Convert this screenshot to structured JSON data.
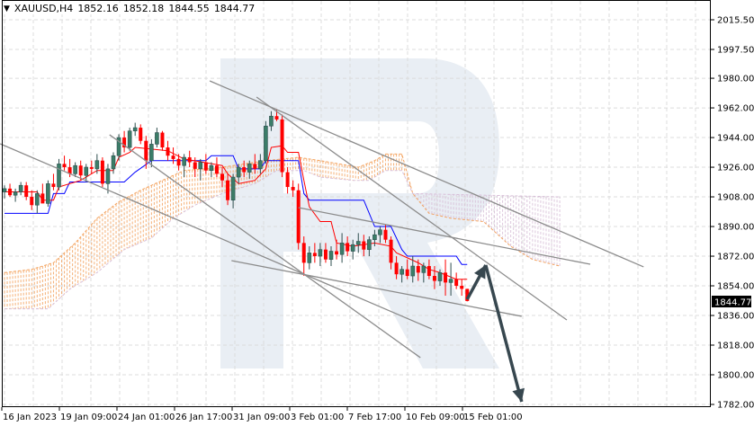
{
  "header": {
    "symbol": "XAUUSD,H4",
    "open": "1852.16",
    "high": "1852.18",
    "low": "1844.55",
    "close": "1844.77",
    "menu_icon": "triangle-down-icon"
  },
  "colors": {
    "bull": "#3b7d68",
    "bear": "#ff0000",
    "tenkan": "#ff0000",
    "kijun": "#0000ff",
    "span_a": "#f4a460",
    "span_b": "#d8bfd8",
    "trendline": "#8c8c8c",
    "arrow": "#37474f",
    "watermark": "#e9eef4"
  },
  "chart_data": {
    "type": "candlestick",
    "ylim": [
      1782,
      2015.5
    ],
    "grid": true,
    "y_ticks": [
      "2015.50",
      "1997.50",
      "1980.00",
      "1962.00",
      "1944.00",
      "1926.00",
      "1908.00",
      "1890.00",
      "1872.00",
      "1854.00",
      "1836.00",
      "1818.00",
      "1800.00",
      "1782.00"
    ],
    "x_ticks": [
      "16 Jan 2023",
      "19 Jan 09:00",
      "24 Jan 01:00",
      "26 Jan 17:00",
      "31 Jan 09:00",
      "3 Feb 01:00",
      "7 Feb 17:00",
      "10 Feb 09:00",
      "15 Feb 01:00"
    ],
    "current_price": "1844.77",
    "candles_ohlc": [
      [
        1911,
        1915,
        1907,
        1913
      ],
      [
        1913,
        1916,
        1908,
        1909
      ],
      [
        1909,
        1913,
        1905,
        1911
      ],
      [
        1911,
        1917,
        1909,
        1915
      ],
      [
        1915,
        1917,
        1906,
        1908
      ],
      [
        1908,
        1912,
        1900,
        1903
      ],
      [
        1903,
        1912,
        1898,
        1910
      ],
      [
        1910,
        1916,
        1906,
        1904
      ],
      [
        1904,
        1918,
        1902,
        1916
      ],
      [
        1916,
        1922,
        1912,
        1914
      ],
      [
        1914,
        1931,
        1912,
        1928
      ],
      [
        1928,
        1933,
        1924,
        1926
      ],
      [
        1926,
        1931,
        1920,
        1922
      ],
      [
        1922,
        1929,
        1920,
        1927
      ],
      [
        1927,
        1930,
        1918,
        1921
      ],
      [
        1921,
        1928,
        1917,
        1926
      ],
      [
        1926,
        1930,
        1922,
        1925
      ],
      [
        1925,
        1934,
        1922,
        1930
      ],
      [
        1930,
        1932,
        1914,
        1916
      ],
      [
        1916,
        1928,
        1910,
        1925
      ],
      [
        1925,
        1935,
        1922,
        1933
      ],
      [
        1933,
        1946,
        1930,
        1944
      ],
      [
        1944,
        1948,
        1935,
        1938
      ],
      [
        1938,
        1950,
        1936,
        1948
      ],
      [
        1948,
        1953,
        1945,
        1950
      ],
      [
        1950,
        1952,
        1940,
        1942
      ],
      [
        1942,
        1945,
        1925,
        1930
      ],
      [
        1930,
        1943,
        1926,
        1940
      ],
      [
        1940,
        1950,
        1938,
        1947
      ],
      [
        1947,
        1948,
        1936,
        1938
      ],
      [
        1938,
        1942,
        1930,
        1933
      ],
      [
        1933,
        1938,
        1928,
        1931
      ],
      [
        1931,
        1934,
        1924,
        1927
      ],
      [
        1927,
        1934,
        1920,
        1932
      ],
      [
        1932,
        1936,
        1926,
        1929
      ],
      [
        1929,
        1932,
        1920,
        1925
      ],
      [
        1925,
        1931,
        1918,
        1929
      ],
      [
        1929,
        1934,
        1922,
        1924
      ],
      [
        1924,
        1929,
        1920,
        1927
      ],
      [
        1927,
        1932,
        1920,
        1922
      ],
      [
        1922,
        1926,
        1914,
        1918
      ],
      [
        1918,
        1922,
        1903,
        1906
      ],
      [
        1906,
        1922,
        1901,
        1920
      ],
      [
        1920,
        1928,
        1916,
        1926
      ],
      [
        1926,
        1930,
        1920,
        1923
      ],
      [
        1923,
        1930,
        1919,
        1928
      ],
      [
        1928,
        1934,
        1922,
        1925
      ],
      [
        1925,
        1934,
        1922,
        1930
      ],
      [
        1930,
        1954,
        1928,
        1951
      ],
      [
        1951,
        1960,
        1948,
        1957
      ],
      [
        1957,
        1961,
        1954,
        1955
      ],
      [
        1955,
        1958,
        1920,
        1923
      ],
      [
        1923,
        1926,
        1910,
        1914
      ],
      [
        1914,
        1918,
        1908,
        1912
      ],
      [
        1912,
        1916,
        1876,
        1880
      ],
      [
        1880,
        1884,
        1860,
        1868
      ],
      [
        1868,
        1878,
        1864,
        1874
      ],
      [
        1874,
        1880,
        1868,
        1872
      ],
      [
        1872,
        1880,
        1866,
        1876
      ],
      [
        1876,
        1880,
        1868,
        1870
      ],
      [
        1870,
        1878,
        1866,
        1875
      ],
      [
        1875,
        1882,
        1870,
        1873
      ],
      [
        1873,
        1886,
        1868,
        1880
      ],
      [
        1880,
        1884,
        1872,
        1875
      ],
      [
        1875,
        1882,
        1870,
        1879
      ],
      [
        1879,
        1886,
        1874,
        1881
      ],
      [
        1881,
        1885,
        1872,
        1876
      ],
      [
        1876,
        1884,
        1872,
        1882
      ],
      [
        1882,
        1888,
        1878,
        1885
      ],
      [
        1885,
        1890,
        1880,
        1888
      ],
      [
        1888,
        1891,
        1880,
        1882
      ],
      [
        1882,
        1884,
        1864,
        1868
      ],
      [
        1868,
        1872,
        1858,
        1861
      ],
      [
        1861,
        1866,
        1856,
        1864
      ],
      [
        1864,
        1870,
        1858,
        1860
      ],
      [
        1860,
        1872,
        1856,
        1866
      ],
      [
        1866,
        1870,
        1857,
        1862
      ],
      [
        1862,
        1868,
        1856,
        1866
      ],
      [
        1866,
        1870,
        1858,
        1860
      ],
      [
        1860,
        1866,
        1852,
        1857
      ],
      [
        1857,
        1864,
        1854,
        1862
      ],
      [
        1862,
        1870,
        1848,
        1856
      ],
      [
        1856,
        1868,
        1848,
        1858
      ],
      [
        1858,
        1862,
        1852,
        1854
      ],
      [
        1854,
        1858,
        1848,
        1852.16
      ],
      [
        1852.16,
        1852.18,
        1844.55,
        1844.77
      ]
    ],
    "ichimoku": {
      "tenkan": [
        [
          0,
          1911
        ],
        [
          6,
          1911
        ],
        [
          7,
          1906
        ],
        [
          9,
          1906
        ],
        [
          10,
          1914
        ],
        [
          14,
          1918
        ],
        [
          17,
          1924
        ],
        [
          20,
          1924
        ],
        [
          21,
          1932
        ],
        [
          23,
          1935
        ],
        [
          24,
          1938
        ],
        [
          30,
          1936
        ],
        [
          33,
          1931
        ],
        [
          40,
          1927
        ],
        [
          41,
          1922
        ],
        [
          43,
          1916
        ],
        [
          46,
          1918
        ],
        [
          48,
          1925
        ],
        [
          49,
          1938
        ],
        [
          51,
          1939
        ],
        [
          52,
          1935
        ],
        [
          54,
          1935
        ],
        [
          55,
          1918
        ],
        [
          56,
          1902
        ],
        [
          58,
          1893
        ],
        [
          60,
          1893
        ],
        [
          61,
          1880
        ],
        [
          64,
          1878
        ],
        [
          68,
          1880
        ],
        [
          71,
          1878
        ],
        [
          72,
          1874
        ],
        [
          76,
          1868
        ],
        [
          78,
          1864
        ],
        [
          80,
          1862
        ],
        [
          83,
          1858
        ],
        [
          85,
          1858
        ]
      ],
      "kijun": [
        [
          0,
          1898
        ],
        [
          8,
          1898
        ],
        [
          9,
          1910
        ],
        [
          11,
          1910
        ],
        [
          12,
          1917
        ],
        [
          22,
          1917
        ],
        [
          24,
          1923
        ],
        [
          27,
          1930
        ],
        [
          37,
          1930
        ],
        [
          38,
          1933
        ],
        [
          42,
          1933
        ],
        [
          43,
          1925
        ],
        [
          47,
          1925
        ],
        [
          48,
          1930
        ],
        [
          54,
          1930
        ],
        [
          55,
          1910
        ],
        [
          56,
          1906
        ],
        [
          66,
          1906
        ],
        [
          68,
          1890
        ],
        [
          71,
          1890
        ],
        [
          73,
          1876
        ],
        [
          74,
          1872
        ],
        [
          83,
          1872
        ],
        [
          84,
          1867
        ],
        [
          85,
          1867
        ]
      ],
      "span_a": [
        [
          0,
          1862
        ],
        [
          5,
          1864
        ],
        [
          9,
          1868
        ],
        [
          13,
          1880
        ],
        [
          17,
          1895
        ],
        [
          21,
          1905
        ],
        [
          25,
          1912
        ],
        [
          29,
          1918
        ],
        [
          33,
          1924
        ],
        [
          40,
          1926
        ],
        [
          48,
          1930
        ],
        [
          54,
          1932
        ],
        [
          58,
          1930
        ],
        [
          65,
          1926
        ],
        [
          68,
          1930
        ],
        [
          70,
          1934
        ],
        [
          73,
          1934
        ],
        [
          75,
          1910
        ],
        [
          78,
          1898
        ],
        [
          82,
          1895
        ],
        [
          88,
          1893
        ],
        [
          93,
          1878
        ],
        [
          97,
          1870
        ],
        [
          102,
          1866
        ]
      ],
      "span_b": [
        [
          0,
          1840
        ],
        [
          8,
          1840
        ],
        [
          12,
          1852
        ],
        [
          17,
          1862
        ],
        [
          22,
          1876
        ],
        [
          27,
          1883
        ],
        [
          31,
          1895
        ],
        [
          35,
          1903
        ],
        [
          40,
          1910
        ],
        [
          46,
          1916
        ],
        [
          50,
          1924
        ],
        [
          55,
          1924
        ],
        [
          58,
          1920
        ],
        [
          64,
          1918
        ],
        [
          67,
          1918
        ],
        [
          70,
          1924
        ],
        [
          73,
          1924
        ],
        [
          75,
          1910
        ],
        [
          102,
          1908
        ]
      ]
    },
    "trendlines": [
      [
        [
          -0.8,
          1940.2
        ],
        [
          78.5,
          1827.8
        ]
      ],
      [
        [
          19.3,
          1945.7
        ],
        [
          76.4,
          1810.4
        ]
      ],
      [
        [
          41.7,
          1869.3
        ],
        [
          95.0,
          1835.5
        ]
      ],
      [
        [
          37.7,
          1978.4
        ],
        [
          117.4,
          1865.5
        ]
      ],
      [
        [
          46.3,
          1968.6
        ],
        [
          103.3,
          1833.3
        ]
      ],
      [
        [
          54.0,
          1901.5
        ],
        [
          107.6,
          1867.1
        ]
      ]
    ],
    "forecast_arrows": [
      [
        [
          85,
          1845.8
        ],
        [
          88.4,
          1866.6
        ]
      ],
      [
        [
          88.4,
          1866.6
        ],
        [
          95.0,
          1783.6
        ]
      ]
    ]
  }
}
